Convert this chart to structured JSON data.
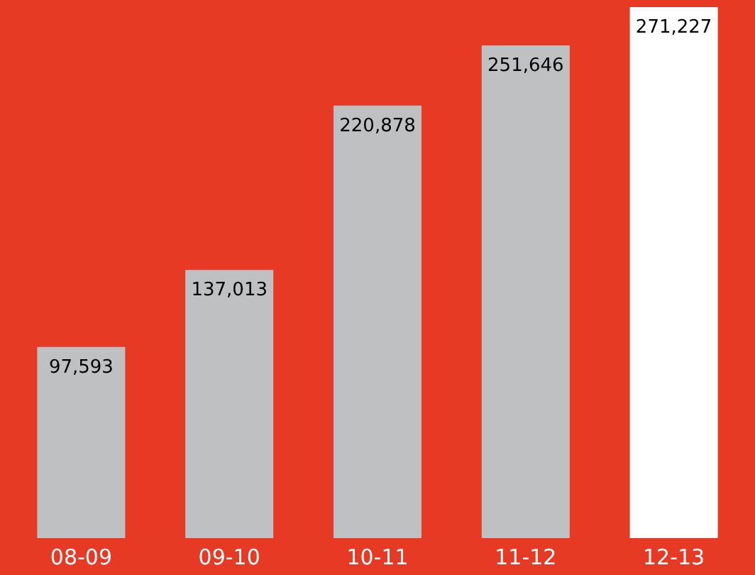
{
  "chart_data": {
    "type": "bar",
    "categories": [
      "08-09",
      "09-10",
      "10-11",
      "11-12",
      "12-13"
    ],
    "values": [
      97593,
      137013,
      220878,
      251646,
      271227
    ],
    "value_labels": [
      "97,593",
      "137,013",
      "220,878",
      "251,646",
      "271,227"
    ],
    "colors": [
      "#bfc0c2",
      "#bfc0c2",
      "#bfc0c2",
      "#bfc0c2",
      "#ffffff"
    ],
    "grid": false
  }
}
